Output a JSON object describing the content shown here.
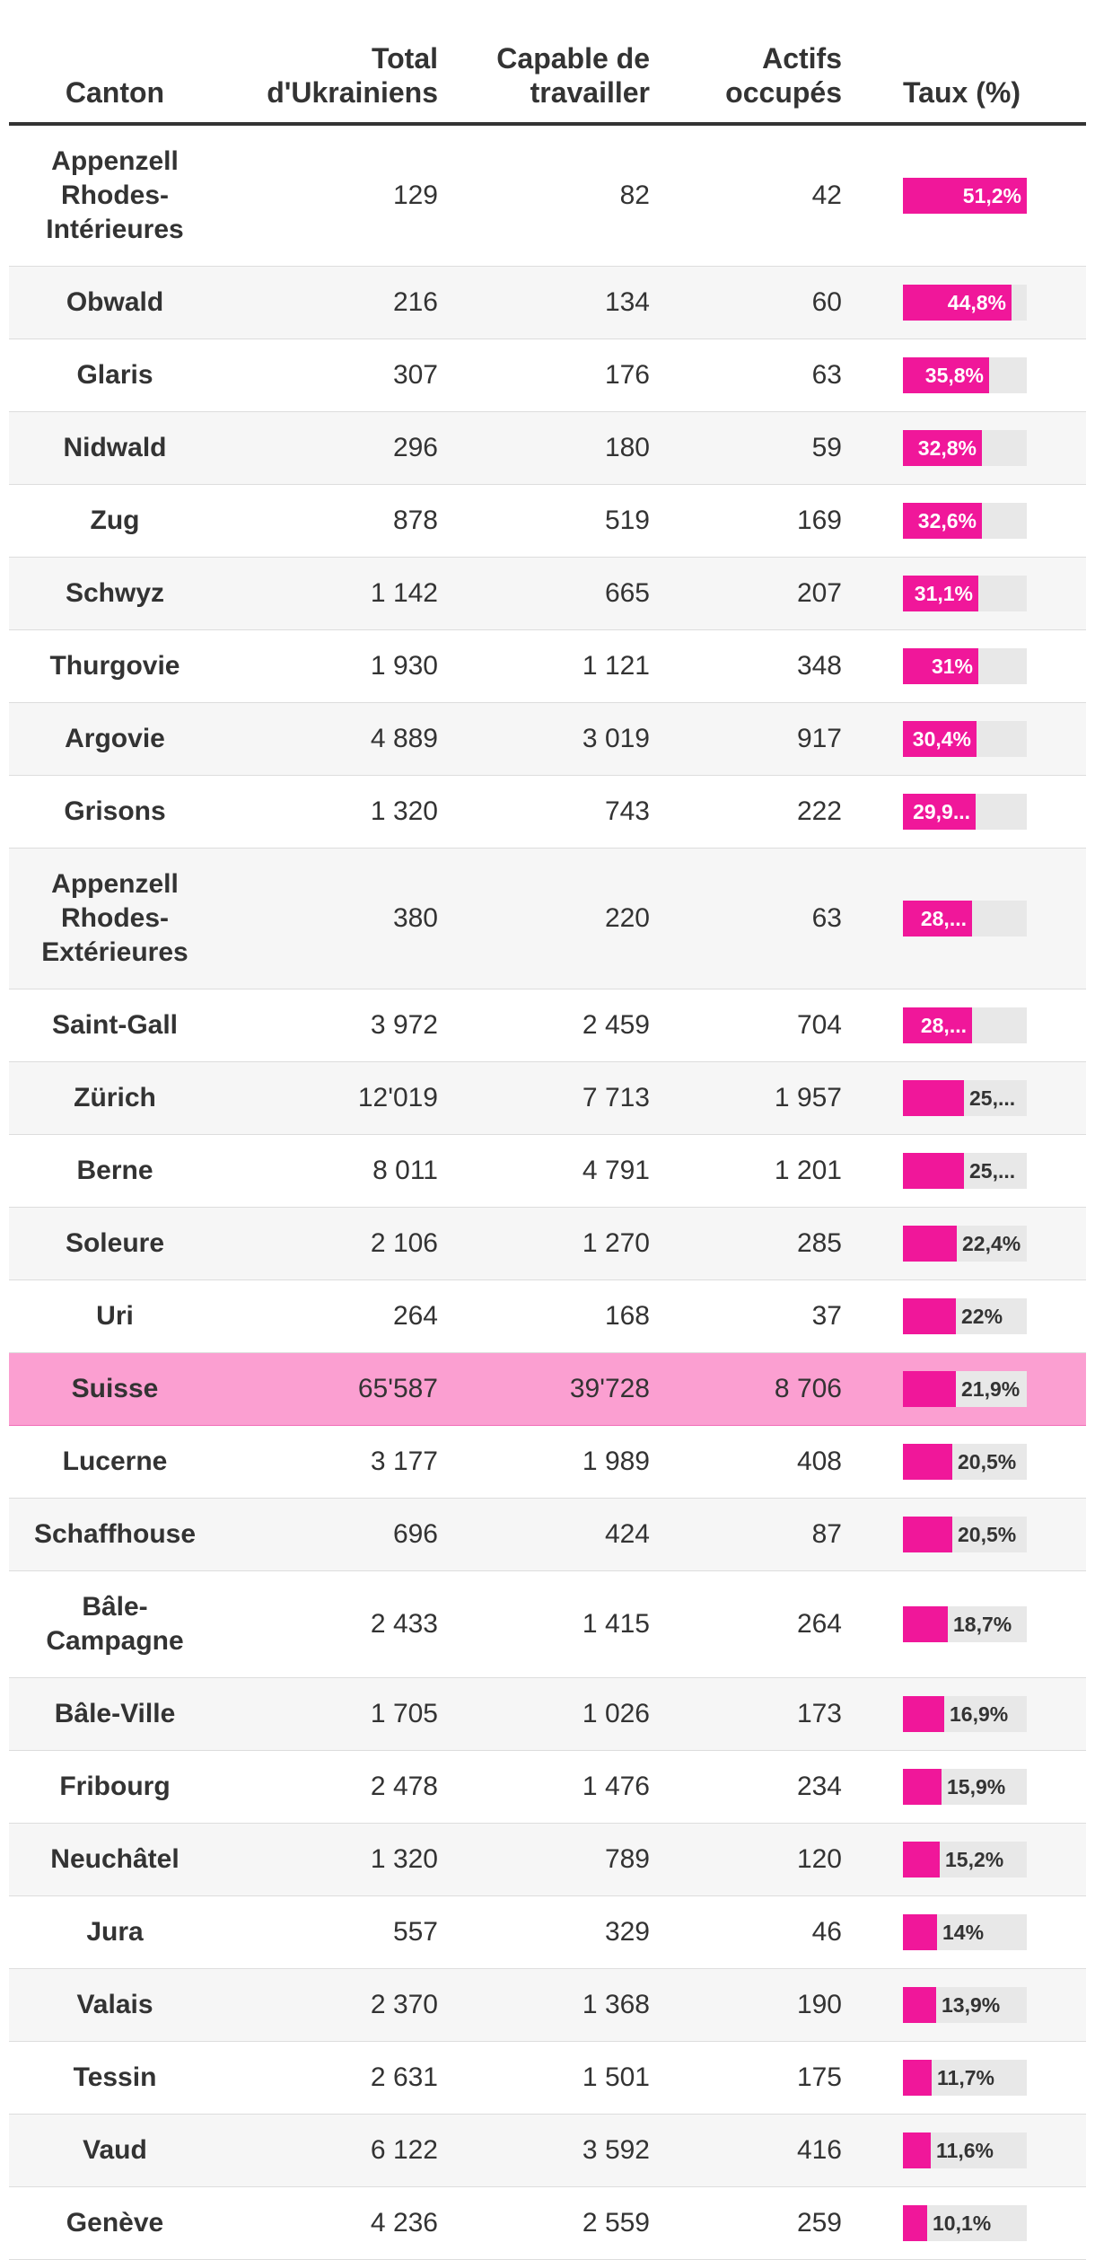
{
  "chart_data": {
    "type": "table",
    "columns": [
      "Canton",
      "Total d'Ukrainiens",
      "Capable de travailler",
      "Actifs occupés",
      "Taux (%)"
    ],
    "rate_max": 51.2,
    "colors": {
      "bar": "#f0179a",
      "track": "#e8e8e8",
      "highlight_row": "#fb9fd1"
    },
    "rows": [
      {
        "canton": "Appenzell Rhodes-Intérieures",
        "total": "129",
        "capable": "82",
        "actifs": "42",
        "taux": 51.2,
        "taux_label": "51,2%"
      },
      {
        "canton": "Obwald",
        "total": "216",
        "capable": "134",
        "actifs": "60",
        "taux": 44.8,
        "taux_label": "44,8%"
      },
      {
        "canton": "Glaris",
        "total": "307",
        "capable": "176",
        "actifs": "63",
        "taux": 35.8,
        "taux_label": "35,8%"
      },
      {
        "canton": "Nidwald",
        "total": "296",
        "capable": "180",
        "actifs": "59",
        "taux": 32.8,
        "taux_label": "32,8%"
      },
      {
        "canton": "Zug",
        "total": "878",
        "capable": "519",
        "actifs": "169",
        "taux": 32.6,
        "taux_label": "32,6%"
      },
      {
        "canton": "Schwyz",
        "total": "1 142",
        "capable": "665",
        "actifs": "207",
        "taux": 31.1,
        "taux_label": "31,1%"
      },
      {
        "canton": "Thurgovie",
        "total": "1 930",
        "capable": "1 121",
        "actifs": "348",
        "taux": 31.0,
        "taux_label": "31%"
      },
      {
        "canton": "Argovie",
        "total": "4 889",
        "capable": "3 019",
        "actifs": "917",
        "taux": 30.4,
        "taux_label": "30,4%"
      },
      {
        "canton": "Grisons",
        "total": "1 320",
        "capable": "743",
        "actifs": "222",
        "taux": 29.9,
        "taux_label": "29,9..."
      },
      {
        "canton": "Appenzell Rhodes-Extérieures",
        "total": "380",
        "capable": "220",
        "actifs": "63",
        "taux": 28.6,
        "taux_label": "28,..."
      },
      {
        "canton": "Saint-Gall",
        "total": "3 972",
        "capable": "2 459",
        "actifs": "704",
        "taux": 28.6,
        "taux_label": "28,..."
      },
      {
        "canton": "Zürich",
        "total": "12'019",
        "capable": "7 713",
        "actifs": "1 957",
        "taux": 25.4,
        "taux_label": "25,..."
      },
      {
        "canton": "Berne",
        "total": "8 011",
        "capable": "4 791",
        "actifs": "1 201",
        "taux": 25.1,
        "taux_label": "25,..."
      },
      {
        "canton": "Soleure",
        "total": "2 106",
        "capable": "1 270",
        "actifs": "285",
        "taux": 22.4,
        "taux_label": "22,4%"
      },
      {
        "canton": "Uri",
        "total": "264",
        "capable": "168",
        "actifs": "37",
        "taux": 22.0,
        "taux_label": "22%"
      },
      {
        "canton": "Suisse",
        "total": "65'587",
        "capable": "39'728",
        "actifs": "8 706",
        "taux": 21.9,
        "taux_label": "21,9%",
        "highlight": true
      },
      {
        "canton": "Lucerne",
        "total": "3 177",
        "capable": "1 989",
        "actifs": "408",
        "taux": 20.5,
        "taux_label": "20,5%"
      },
      {
        "canton": "Schaffhouse",
        "total": "696",
        "capable": "424",
        "actifs": "87",
        "taux": 20.5,
        "taux_label": "20,5%"
      },
      {
        "canton": "Bâle-Campagne",
        "total": "2 433",
        "capable": "1 415",
        "actifs": "264",
        "taux": 18.7,
        "taux_label": "18,7%"
      },
      {
        "canton": "Bâle-Ville",
        "total": "1 705",
        "capable": "1 026",
        "actifs": "173",
        "taux": 16.9,
        "taux_label": "16,9%"
      },
      {
        "canton": "Fribourg",
        "total": "2 478",
        "capable": "1 476",
        "actifs": "234",
        "taux": 15.9,
        "taux_label": "15,9%"
      },
      {
        "canton": "Neuchâtel",
        "total": "1 320",
        "capable": "789",
        "actifs": "120",
        "taux": 15.2,
        "taux_label": "15,2%"
      },
      {
        "canton": "Jura",
        "total": "557",
        "capable": "329",
        "actifs": "46",
        "taux": 14.0,
        "taux_label": "14%"
      },
      {
        "canton": "Valais",
        "total": "2 370",
        "capable": "1 368",
        "actifs": "190",
        "taux": 13.9,
        "taux_label": "13,9%"
      },
      {
        "canton": "Tessin",
        "total": "2 631",
        "capable": "1 501",
        "actifs": "175",
        "taux": 11.7,
        "taux_label": "11,7%"
      },
      {
        "canton": "Vaud",
        "total": "6 122",
        "capable": "3 592",
        "actifs": "416",
        "taux": 11.6,
        "taux_label": "11,6%"
      },
      {
        "canton": "Genève",
        "total": "4 236",
        "capable": "2 559",
        "actifs": "259",
        "taux": 10.1,
        "taux_label": "10,1%"
      }
    ]
  }
}
